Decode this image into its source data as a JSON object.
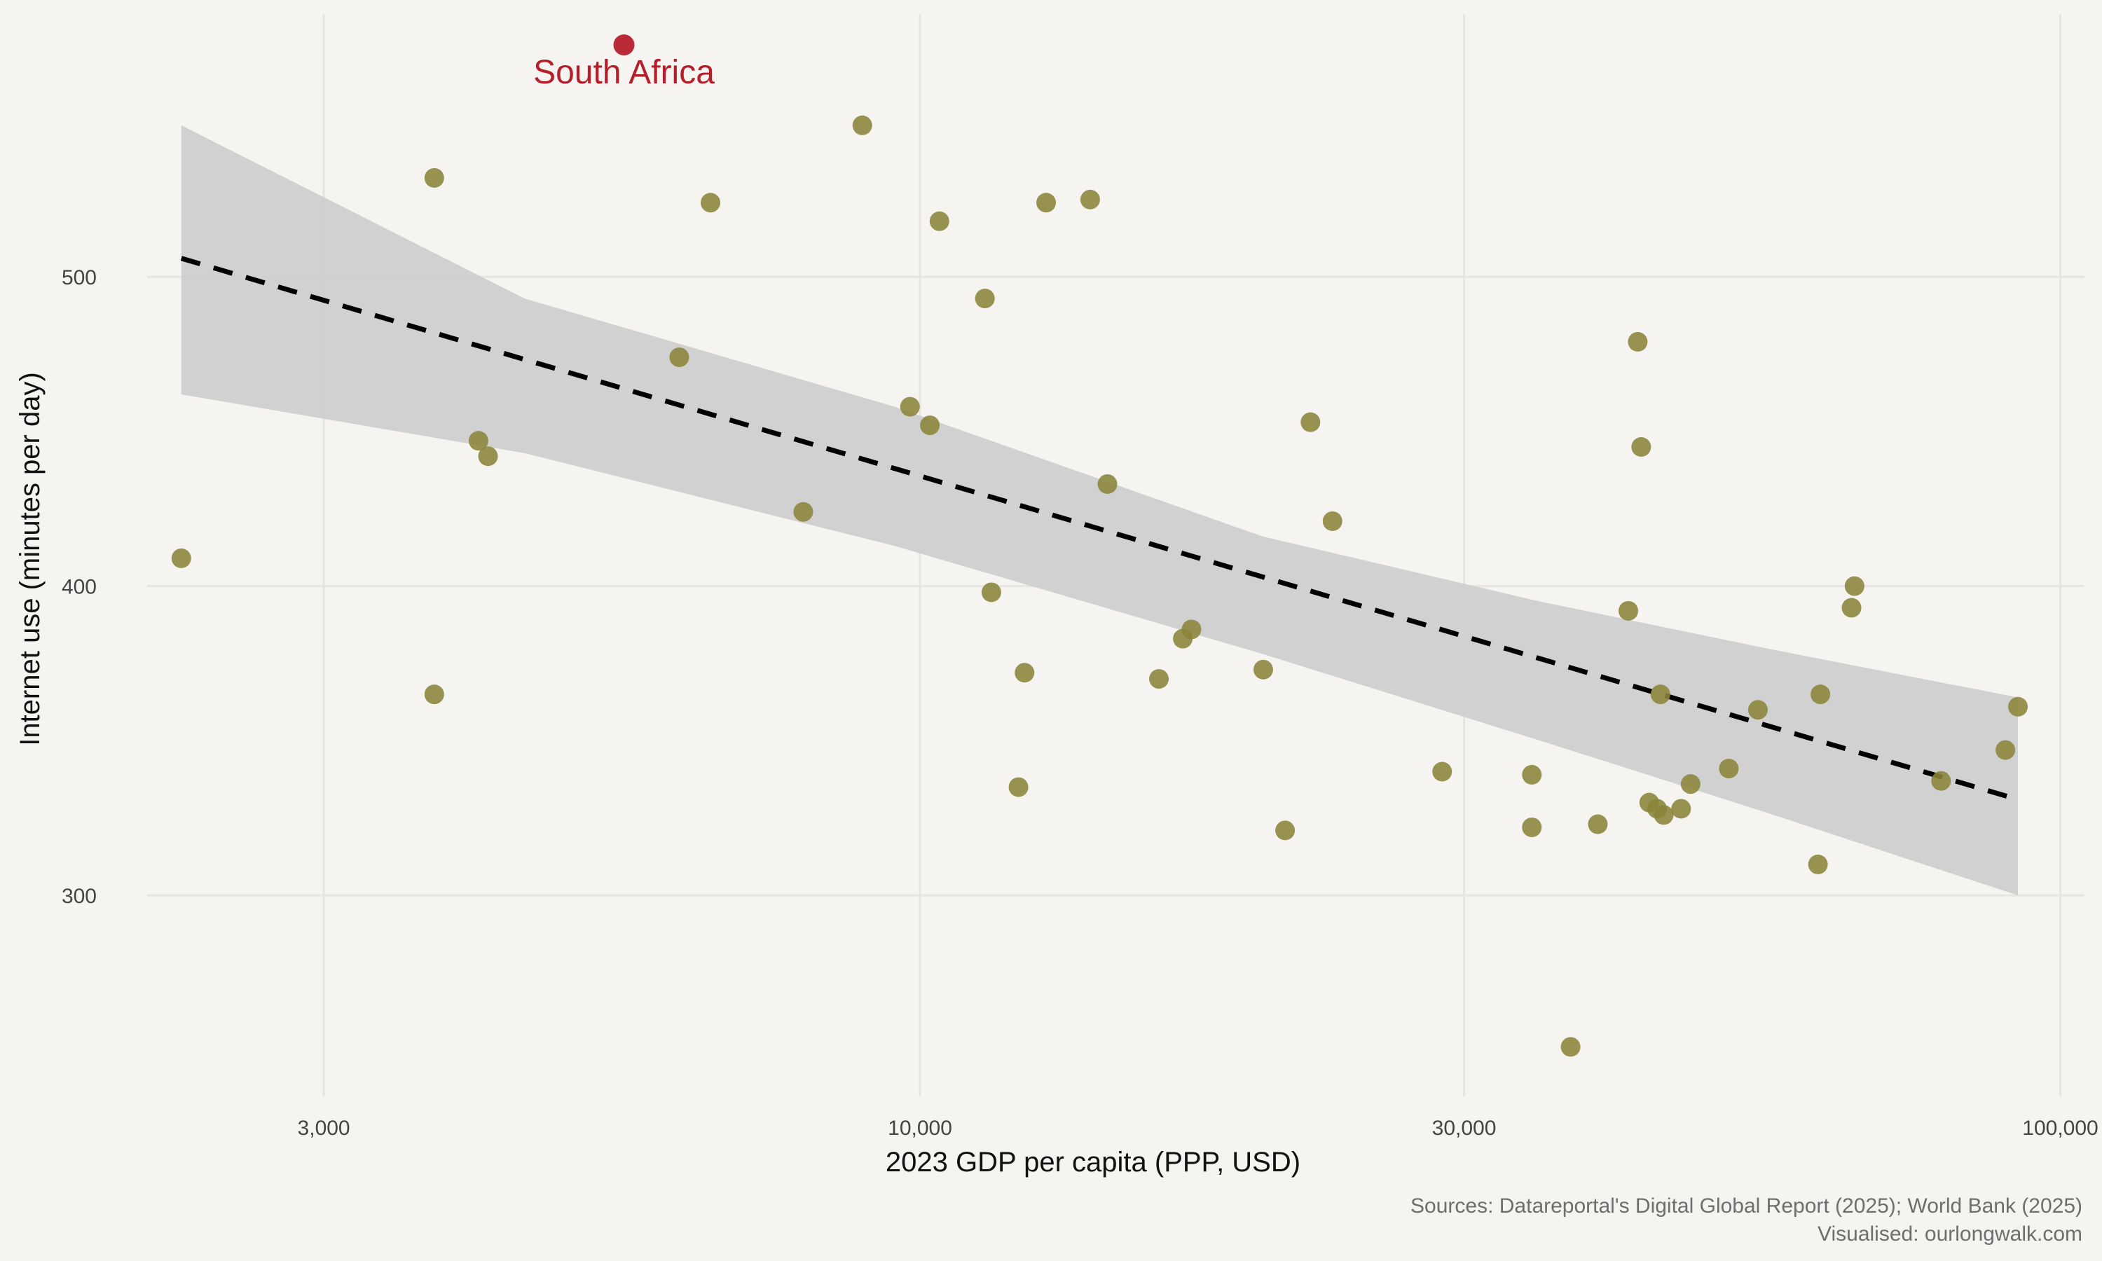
{
  "chart_data": {
    "type": "scatter",
    "title": "",
    "xlabel": "2023 GDP per capita (PPP, USD)",
    "ylabel": "Internet use (minutes per day)",
    "x_scale": "log10",
    "xlim": [
      2100,
      105000
    ],
    "ylim": [
      235,
      585
    ],
    "x_ticks": [
      3000,
      10000,
      30000,
      100000
    ],
    "x_tick_labels": [
      "3,000",
      "10,000",
      "30,000",
      "100,000"
    ],
    "y_ticks": [
      300,
      400,
      500
    ],
    "y_tick_labels": [
      "300",
      "400",
      "500"
    ],
    "grid": true,
    "legend": "none",
    "highlight": {
      "label": "South Africa",
      "x": 5500,
      "y": 575
    },
    "points": [
      {
        "x": 2250,
        "y": 409
      },
      {
        "x": 3750,
        "y": 532
      },
      {
        "x": 3750,
        "y": 365
      },
      {
        "x": 4100,
        "y": 447
      },
      {
        "x": 4180,
        "y": 442
      },
      {
        "x": 6150,
        "y": 474
      },
      {
        "x": 6550,
        "y": 524
      },
      {
        "x": 7900,
        "y": 424
      },
      {
        "x": 8900,
        "y": 549
      },
      {
        "x": 9800,
        "y": 458
      },
      {
        "x": 10200,
        "y": 452
      },
      {
        "x": 10400,
        "y": 518
      },
      {
        "x": 11400,
        "y": 493
      },
      {
        "x": 11550,
        "y": 398
      },
      {
        "x": 12200,
        "y": 335
      },
      {
        "x": 12350,
        "y": 372
      },
      {
        "x": 12900,
        "y": 524
      },
      {
        "x": 14100,
        "y": 525
      },
      {
        "x": 14600,
        "y": 433
      },
      {
        "x": 16200,
        "y": 370
      },
      {
        "x": 17000,
        "y": 383
      },
      {
        "x": 17300,
        "y": 386
      },
      {
        "x": 20000,
        "y": 373
      },
      {
        "x": 20900,
        "y": 321
      },
      {
        "x": 22000,
        "y": 453
      },
      {
        "x": 23000,
        "y": 421
      },
      {
        "x": 28700,
        "y": 340
      },
      {
        "x": 34400,
        "y": 339
      },
      {
        "x": 34400,
        "y": 322
      },
      {
        "x": 37200,
        "y": 251
      },
      {
        "x": 39300,
        "y": 323
      },
      {
        "x": 41800,
        "y": 392
      },
      {
        "x": 42600,
        "y": 479
      },
      {
        "x": 42900,
        "y": 445
      },
      {
        "x": 43600,
        "y": 330
      },
      {
        "x": 44300,
        "y": 328
      },
      {
        "x": 44600,
        "y": 365
      },
      {
        "x": 44900,
        "y": 326
      },
      {
        "x": 46500,
        "y": 328
      },
      {
        "x": 47400,
        "y": 336
      },
      {
        "x": 51200,
        "y": 341
      },
      {
        "x": 54300,
        "y": 360
      },
      {
        "x": 61300,
        "y": 310
      },
      {
        "x": 61600,
        "y": 365
      },
      {
        "x": 65600,
        "y": 393
      },
      {
        "x": 66000,
        "y": 400
      },
      {
        "x": 78600,
        "y": 337
      },
      {
        "x": 89500,
        "y": 347
      },
      {
        "x": 91800,
        "y": 361
      }
    ],
    "trend_line": {
      "style": "dashed",
      "x": [
        2250,
        91800
      ],
      "y": [
        506,
        331
      ]
    },
    "confidence_band": {
      "x": [
        2250,
        4500,
        9500,
        20000,
        35000,
        55000,
        91800
      ],
      "lower": [
        462,
        443,
        413,
        378,
        350,
        327,
        300
      ],
      "upper": [
        549,
        493,
        458,
        416,
        395,
        380,
        364
      ]
    },
    "colors": {
      "background": "#f5f4f0",
      "grid": "#e6e5e1",
      "points": "#8a8439",
      "highlight": "#b51f2b",
      "band": "#cfcfcf",
      "trend": "#000000"
    }
  },
  "footer": {
    "source_line": "Sources: Datareportal's Digital Global Report (2025); World Bank (2025)",
    "credit_line": "Visualised: ourlongwalk.com"
  }
}
